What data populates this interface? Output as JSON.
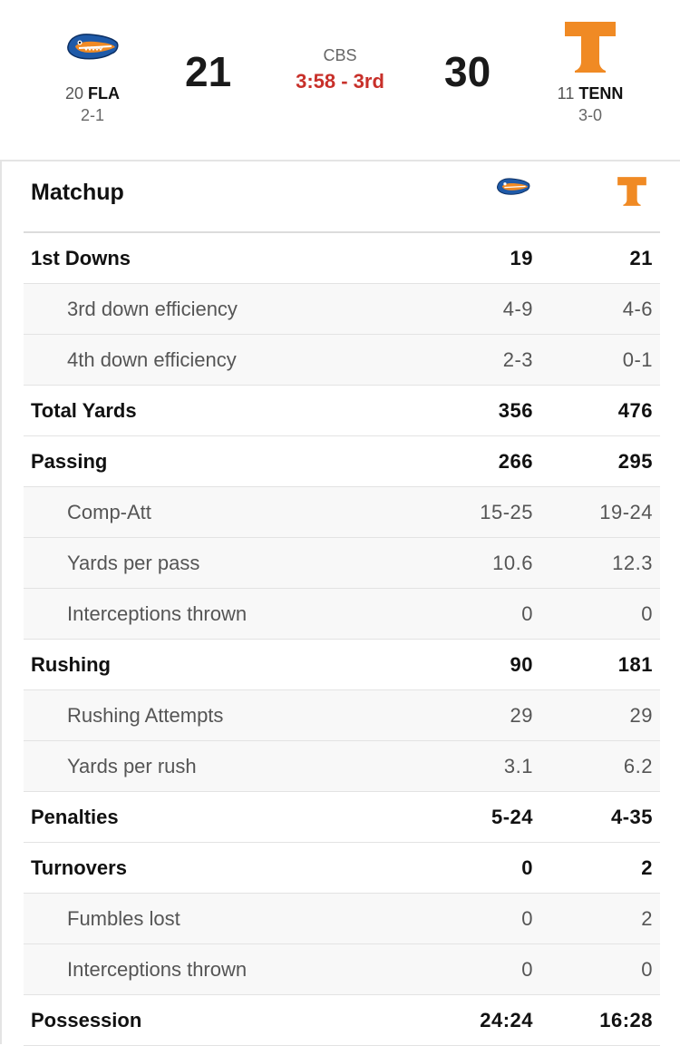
{
  "game": {
    "away": {
      "rank": "20",
      "abbr": "FLA",
      "record": "2-1",
      "score": "21",
      "logo": "gators-logo",
      "color": "#1f5aa8"
    },
    "home": {
      "rank": "11",
      "abbr": "TENN",
      "record": "3-0",
      "score": "30",
      "logo": "tennessee-t-logo",
      "color": "#f08a24"
    },
    "network": "CBS",
    "clock": "3:58 - 3rd",
    "clock_color": "#c8302a"
  },
  "matchup": {
    "title": "Matchup",
    "rows": [
      {
        "label": "1st Downs",
        "away": "19",
        "home": "21",
        "kind": "main"
      },
      {
        "label": "3rd down efficiency",
        "away": "4-9",
        "home": "4-6",
        "kind": "sub"
      },
      {
        "label": "4th down efficiency",
        "away": "2-3",
        "home": "0-1",
        "kind": "sub"
      },
      {
        "label": "Total Yards",
        "away": "356",
        "home": "476",
        "kind": "main"
      },
      {
        "label": "Passing",
        "away": "266",
        "home": "295",
        "kind": "main"
      },
      {
        "label": "Comp-Att",
        "away": "15-25",
        "home": "19-24",
        "kind": "sub"
      },
      {
        "label": "Yards per pass",
        "away": "10.6",
        "home": "12.3",
        "kind": "sub"
      },
      {
        "label": "Interceptions thrown",
        "away": "0",
        "home": "0",
        "kind": "sub"
      },
      {
        "label": "Rushing",
        "away": "90",
        "home": "181",
        "kind": "main"
      },
      {
        "label": "Rushing Attempts",
        "away": "29",
        "home": "29",
        "kind": "sub"
      },
      {
        "label": "Yards per rush",
        "away": "3.1",
        "home": "6.2",
        "kind": "sub"
      },
      {
        "label": "Penalties",
        "away": "5-24",
        "home": "4-35",
        "kind": "main"
      },
      {
        "label": "Turnovers",
        "away": "0",
        "home": "2",
        "kind": "main"
      },
      {
        "label": "Fumbles lost",
        "away": "0",
        "home": "2",
        "kind": "sub"
      },
      {
        "label": "Interceptions thrown",
        "away": "0",
        "home": "0",
        "kind": "sub"
      },
      {
        "label": "Possession",
        "away": "24:24",
        "home": "16:28",
        "kind": "main"
      }
    ]
  }
}
